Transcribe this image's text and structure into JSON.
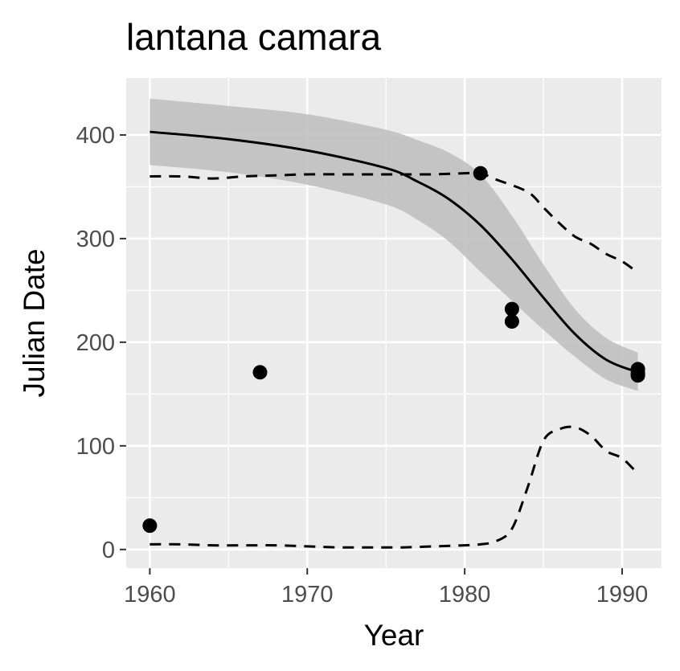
{
  "chart_data": {
    "type": "scatter",
    "title": "lantana camara",
    "xlabel": "Year",
    "ylabel": "Julian Date",
    "xlim": [
      1958.5,
      1992.5
    ],
    "ylim": [
      -18,
      455
    ],
    "x_ticks": [
      1960,
      1970,
      1980,
      1990
    ],
    "x_tick_labels": [
      "1960",
      "1970",
      "1980",
      "1990"
    ],
    "y_ticks": [
      0,
      100,
      200,
      300,
      400
    ],
    "y_tick_labels": [
      "0",
      "100",
      "200",
      "300",
      "400"
    ],
    "grid": true,
    "legend": "none",
    "colors": {
      "panel_background": "#ebebeb",
      "grid": "#ffffff",
      "points": "#000000",
      "ribbon": "#bdbdbd",
      "trend_line": "#000000"
    },
    "points": [
      {
        "x": 1960,
        "y": 23
      },
      {
        "x": 1967,
        "y": 171
      },
      {
        "x": 1981,
        "y": 363
      },
      {
        "x": 1983,
        "y": 232
      },
      {
        "x": 1983,
        "y": 220
      },
      {
        "x": 1991,
        "y": 174
      },
      {
        "x": 1991,
        "y": 170
      },
      {
        "x": 1991,
        "y": 168
      }
    ],
    "trend": {
      "x": [
        1960,
        1965,
        1970,
        1975,
        1977,
        1979,
        1981,
        1983,
        1985,
        1987,
        1989,
        1991
      ],
      "y": [
        403,
        396,
        385,
        368,
        355,
        338,
        313,
        280,
        243,
        208,
        183,
        171
      ]
    },
    "confidence_band": {
      "x": [
        1960,
        1965,
        1970,
        1975,
        1977,
        1979,
        1981,
        1983,
        1985,
        1987,
        1989,
        1991
      ],
      "upper": [
        435,
        428,
        420,
        405,
        395,
        383,
        362,
        322,
        275,
        232,
        204,
        190
      ],
      "lower": [
        371,
        364,
        352,
        333,
        318,
        297,
        268,
        240,
        212,
        186,
        164,
        153
      ]
    },
    "upper_quantile": {
      "x": [
        1960,
        1962,
        1964,
        1966,
        1968,
        1970,
        1972,
        1974,
        1976,
        1978,
        1980,
        1981,
        1982,
        1984,
        1985,
        1986,
        1987,
        1988,
        1989,
        1990,
        1991
      ],
      "y": [
        360,
        360,
        358,
        360,
        361,
        362,
        362,
        362,
        362,
        362,
        363,
        363,
        357,
        345,
        330,
        315,
        302,
        295,
        285,
        278,
        267
      ]
    },
    "lower_quantile": {
      "x": [
        1960,
        1962,
        1964,
        1966,
        1968,
        1970,
        1972,
        1974,
        1976,
        1978,
        1980,
        1981,
        1982,
        1983,
        1984,
        1985,
        1986,
        1987,
        1988,
        1989,
        1990,
        1991
      ],
      "y": [
        5,
        5,
        4,
        4,
        4,
        3,
        2,
        2,
        2,
        3,
        4,
        5,
        8,
        20,
        60,
        105,
        116,
        118,
        110,
        95,
        88,
        73
      ]
    }
  }
}
